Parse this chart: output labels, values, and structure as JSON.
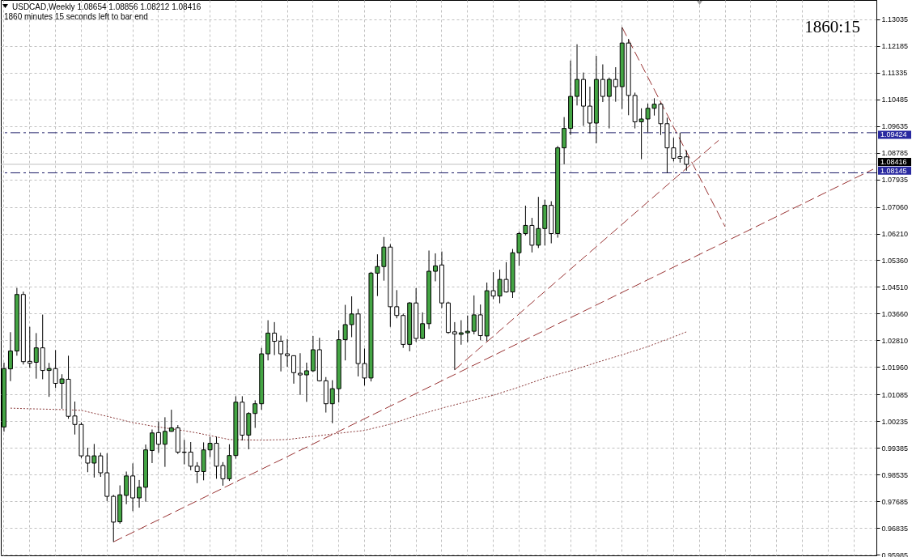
{
  "chart_data": {
    "type": "candlestick",
    "title": "USDCAD,Weekly  1.08654 1.08856 1.08212 1.08416",
    "subtitle": "1860 minutes 15 seconds left to bar end",
    "annotations": [
      "1860:15"
    ],
    "categories": [
      null,
      null,
      null,
      null,
      null,
      null,
      null,
      null,
      null,
      null,
      null,
      null,
      null,
      null,
      null,
      null,
      null,
      null,
      null,
      null,
      null,
      null,
      null,
      null,
      null,
      null,
      null,
      null,
      null,
      null,
      null,
      null,
      null,
      null,
      null,
      null,
      null,
      null,
      null,
      null,
      null,
      null,
      null,
      null,
      null,
      null,
      null,
      null,
      null,
      null,
      null,
      null,
      null,
      null,
      null,
      null,
      null,
      null,
      null,
      null,
      null,
      null,
      null,
      null,
      null,
      null,
      null,
      null,
      null,
      null,
      null,
      null,
      null,
      null,
      null,
      null,
      null,
      null,
      null,
      null,
      null,
      null,
      null,
      null,
      null,
      null,
      null,
      null,
      null,
      null,
      null,
      null,
      null,
      null,
      null,
      null,
      null,
      null,
      null,
      null,
      null,
      null,
      null,
      null,
      null,
      null,
      null,
      null,
      null,
      null,
      null,
      null,
      null,
      null,
      null,
      null,
      null,
      null,
      null,
      null,
      null,
      null,
      null,
      null,
      null,
      null,
      null,
      null,
      null,
      null,
      null,
      null,
      null,
      null,
      null,
      null
    ],
    "ohlc": [
      [
        1.0005,
        1.021,
        0.999,
        1.0191
      ],
      [
        1.019,
        1.0307,
        1.0151,
        1.0247
      ],
      [
        1.0247,
        1.0448,
        1.0232,
        1.0427
      ],
      [
        1.0427,
        1.0436,
        1.0204,
        1.0213
      ],
      [
        1.0214,
        1.0324,
        1.0193,
        1.0208
      ],
      [
        1.0211,
        1.0304,
        1.0159,
        1.0257
      ],
      [
        1.0257,
        1.0363,
        1.0157,
        1.0185
      ],
      [
        1.0185,
        1.0209,
        1.0101,
        1.0191
      ],
      [
        1.0191,
        1.025,
        1.0129,
        1.0144
      ],
      [
        1.0144,
        1.0173,
        1.0063,
        1.0158
      ],
      [
        1.0157,
        1.0232,
        1.0031,
        1.0039
      ],
      [
        1.004,
        1.0086,
        0.9981,
        1.0013
      ],
      [
        1.0013,
        1.002,
        0.9906,
        0.9913
      ],
      [
        0.9913,
        0.9939,
        0.9861,
        0.989
      ],
      [
        0.989,
        0.9951,
        0.9844,
        0.9913
      ],
      [
        0.9913,
        0.9923,
        0.9846,
        0.9859
      ],
      [
        0.9859,
        0.9921,
        0.9769,
        0.9784
      ],
      [
        0.9784,
        0.9789,
        0.9639,
        0.9702
      ],
      [
        0.9703,
        0.9819,
        0.9697,
        0.9789
      ],
      [
        0.9787,
        0.9863,
        0.9759,
        0.9849
      ],
      [
        0.9849,
        0.9889,
        0.9737,
        0.9779
      ],
      [
        0.9779,
        0.9836,
        0.9748,
        0.9813
      ],
      [
        0.9813,
        0.9949,
        0.9767,
        0.9932
      ],
      [
        0.993,
        0.9997,
        0.989,
        0.9986
      ],
      [
        0.9987,
        1.0023,
        0.9923,
        0.995
      ],
      [
        0.995,
        1.0036,
        0.9878,
        0.9991
      ],
      [
        0.9991,
        1.006,
        0.999,
        1.0002
      ],
      [
        1.0002,
        1.0011,
        0.9919,
        0.9925
      ],
      [
        0.9925,
        0.9964,
        0.9886,
        0.9924
      ],
      [
        0.9925,
        0.9957,
        0.9867,
        0.988
      ],
      [
        0.988,
        0.9893,
        0.9826,
        0.9863
      ],
      [
        0.9863,
        0.9956,
        0.9835,
        0.9932
      ],
      [
        0.9932,
        0.9974,
        0.9909,
        0.9953
      ],
      [
        0.9953,
        0.9974,
        0.984,
        0.988
      ],
      [
        0.9882,
        0.9893,
        0.9818,
        0.984
      ],
      [
        0.984,
        0.995,
        0.9833,
        0.9914
      ],
      [
        0.9914,
        1.0103,
        0.9904,
        1.0084
      ],
      [
        1.0084,
        1.0103,
        0.9962,
        0.9979
      ],
      [
        0.9979,
        1.0052,
        0.9934,
        1.0048
      ],
      [
        1.0048,
        1.009,
        1.0002,
        1.0079
      ],
      [
        1.0079,
        1.0257,
        1.006,
        1.0238
      ],
      [
        1.0238,
        1.0345,
        1.0217,
        1.0304
      ],
      [
        1.0304,
        1.0339,
        1.0234,
        1.0278
      ],
      [
        1.0278,
        1.0296,
        1.0182,
        1.0238
      ],
      [
        1.0238,
        1.0285,
        1.0197,
        1.0232
      ],
      [
        1.0232,
        1.0233,
        1.0143,
        1.0178
      ],
      [
        1.0176,
        1.024,
        1.0107,
        1.0171
      ],
      [
        1.0171,
        1.021,
        1.0085,
        1.0184
      ],
      [
        1.0184,
        1.0295,
        1.018,
        1.0251
      ],
      [
        1.0251,
        1.0289,
        1.015,
        1.0152
      ],
      [
        1.0152,
        1.0164,
        1.0051,
        1.0079
      ],
      [
        1.0079,
        1.0154,
        1.0017,
        1.0127
      ],
      [
        1.0127,
        1.0313,
        1.0083,
        1.0283
      ],
      [
        1.0283,
        1.0394,
        1.0217,
        1.0331
      ],
      [
        1.0331,
        1.0421,
        1.0291,
        1.0365
      ],
      [
        1.0365,
        1.0381,
        1.0166,
        1.0207
      ],
      [
        1.0207,
        1.0255,
        1.0137,
        1.0161
      ],
      [
        1.0161,
        1.0499,
        1.015,
        1.0495
      ],
      [
        1.0495,
        1.0555,
        1.0422,
        1.0516
      ],
      [
        1.0516,
        1.061,
        1.0471,
        1.0578
      ],
      [
        1.0578,
        1.0587,
        1.0324,
        1.0388
      ],
      [
        1.0388,
        1.0441,
        1.0351,
        1.036
      ],
      [
        1.036,
        1.0366,
        1.0257,
        1.0268
      ],
      [
        1.0268,
        1.0403,
        1.0246,
        1.04
      ],
      [
        1.04,
        1.0447,
        1.0276,
        1.0287
      ],
      [
        1.0287,
        1.037,
        1.0285,
        1.0334
      ],
      [
        1.0334,
        1.0567,
        1.0317,
        1.0501
      ],
      [
        1.0501,
        1.0558,
        1.0469,
        1.0518
      ],
      [
        1.0521,
        1.0564,
        1.0384,
        1.04
      ],
      [
        1.04,
        1.0404,
        1.0302,
        1.0306
      ],
      [
        1.0308,
        1.0339,
        1.0187,
        1.0301
      ],
      [
        1.03,
        1.0345,
        1.0267,
        1.0305
      ],
      [
        1.0305,
        1.036,
        1.0275,
        1.031
      ],
      [
        1.031,
        1.0424,
        1.03,
        1.0362
      ],
      [
        1.0362,
        1.0395,
        1.0281,
        1.0296
      ],
      [
        1.0295,
        1.0465,
        1.0278,
        1.0439
      ],
      [
        1.0439,
        1.0498,
        1.0412,
        1.0422
      ],
      [
        1.0422,
        1.0506,
        1.0399,
        1.0475
      ],
      [
        1.0475,
        1.053,
        1.0433,
        1.0435
      ],
      [
        1.0435,
        1.0572,
        1.0416,
        1.056
      ],
      [
        1.056,
        1.0627,
        1.0518,
        1.0621
      ],
      [
        1.0621,
        1.071,
        1.0615,
        1.0647
      ],
      [
        1.0647,
        1.0671,
        1.0561,
        1.0584
      ],
      [
        1.0584,
        1.0738,
        1.0575,
        1.0637
      ],
      [
        1.0637,
        1.0729,
        1.0583,
        1.0711
      ],
      [
        1.0711,
        1.0724,
        1.059,
        1.0621
      ],
      [
        1.0621,
        1.09,
        1.0608,
        1.0894
      ],
      [
        1.0894,
        1.0992,
        1.0842,
        1.0956
      ],
      [
        1.0956,
        1.1172,
        1.0935,
        1.1058
      ],
      [
        1.1058,
        1.1224,
        1.1029,
        1.1112
      ],
      [
        1.1112,
        1.1134,
        1.0964,
        1.1027
      ],
      [
        1.1027,
        1.1089,
        1.0941,
        1.0973
      ],
      [
        1.0973,
        1.1187,
        1.0909,
        1.1112
      ],
      [
        1.1112,
        1.116,
        1.104,
        1.1058
      ],
      [
        1.1058,
        1.1118,
        1.0956,
        1.1112
      ],
      [
        1.1112,
        1.1151,
        1.1041,
        1.1089
      ],
      [
        1.1089,
        1.1278,
        1.1018,
        1.1228
      ],
      [
        1.1228,
        1.1241,
        1.0998,
        1.1061
      ],
      [
        1.1061,
        1.107,
        1.0956,
        1.0977
      ],
      [
        1.0977,
        1.102,
        1.0858,
        1.0986
      ],
      [
        1.0986,
        1.1035,
        1.0944,
        1.102
      ],
      [
        1.102,
        1.1052,
        1.0997,
        1.1033
      ],
      [
        1.1033,
        1.1038,
        1.0935,
        1.0971
      ],
      [
        1.0971,
        1.099,
        1.08145,
        1.0894
      ],
      [
        1.0894,
        1.0926,
        1.0851,
        1.0861
      ],
      [
        1.0866,
        1.09424,
        1.0847,
        1.0861
      ],
      [
        1.08654,
        1.08856,
        1.08212,
        1.08416
      ],
      null,
      null,
      null,
      null,
      null,
      null,
      null,
      null,
      null,
      null,
      null,
      null,
      null,
      null,
      null,
      null,
      null,
      null,
      null,
      null,
      null,
      null,
      null,
      null,
      null,
      null,
      null,
      null,
      null
    ],
    "colors": [
      "#44a544",
      "#44a544",
      "#44a544",
      "#ffffff",
      "#ffffff",
      "#44a544",
      "#ffffff",
      "#44a544",
      "#ffffff",
      "#44a544",
      "#ffffff",
      "#ffffff",
      "#ffffff",
      "#ffffff",
      "#44a544",
      "#ffffff",
      "#ffffff",
      "#ffffff",
      "#44a544",
      "#44a544",
      "#ffffff",
      "#44a544",
      "#44a544",
      "#44a544",
      "#ffffff",
      "#44a544",
      "#44a544",
      "#ffffff",
      "#ffffff",
      "#ffffff",
      "#ffffff",
      "#44a544",
      "#44a544",
      "#ffffff",
      "#ffffff",
      "#44a544",
      "#44a544",
      "#ffffff",
      "#44a544",
      "#44a544",
      "#44a544",
      "#44a544",
      "#ffffff",
      "#ffffff",
      "#ffffff",
      "#ffffff",
      "#ffffff",
      "#44a544",
      "#44a544",
      "#ffffff",
      "#ffffff",
      "#44a544",
      "#44a544",
      "#44a544",
      "#44a544",
      "#ffffff",
      "#ffffff",
      "#44a544",
      "#44a544",
      "#44a544",
      "#ffffff",
      "#ffffff",
      "#ffffff",
      "#44a544",
      "#ffffff",
      "#44a544",
      "#44a544",
      "#44a544",
      "#ffffff",
      "#ffffff",
      "#ffffff",
      "#44a544",
      "#44a544",
      "#44a544",
      "#ffffff",
      "#44a544",
      "#ffffff",
      "#44a544",
      "#ffffff",
      "#44a544",
      "#44a544",
      "#44a544",
      "#ffffff",
      "#44a544",
      "#44a544",
      "#ffffff",
      "#44a544",
      "#44a544",
      "#44a544",
      "#44a544",
      "#ffffff",
      "#ffffff",
      "#44a544",
      "#ffffff",
      "#44a544",
      "#ffffff",
      "#44a544",
      "#ffffff",
      "#ffffff",
      "#44a544",
      "#44a544",
      "#44a544",
      "#ffffff",
      "#ffffff",
      "#ffffff",
      "#ffffff",
      "#ffffff",
      null,
      null,
      null,
      null,
      null,
      null,
      null,
      null,
      null,
      null,
      null,
      null,
      null,
      null,
      null,
      null,
      null,
      null,
      null,
      null,
      null,
      null,
      null,
      null,
      null,
      null,
      null,
      null,
      null
    ],
    "series": [
      {
        "type": "line",
        "color": "#993333",
        "line_style": "dashed",
        "values": [
          null,
          null,
          null,
          null,
          null,
          null,
          null,
          null,
          null,
          null,
          null,
          null,
          null,
          null,
          null,
          null,
          null,
          0.9639,
          null,
          null,
          null,
          null,
          null,
          null,
          null,
          null,
          null,
          null,
          null,
          null,
          null,
          null,
          null,
          null,
          null,
          null,
          null,
          null,
          null,
          null,
          null,
          null,
          null,
          null,
          null,
          null,
          null,
          null,
          null,
          null,
          null,
          null,
          null,
          null,
          null,
          null,
          null,
          null,
          null,
          null,
          null,
          null,
          null,
          null,
          null,
          null,
          null,
          null,
          null,
          null,
          null,
          null,
          null,
          null,
          null,
          null,
          null,
          null,
          null,
          null,
          null,
          null,
          null,
          null,
          null,
          null,
          null,
          null,
          null,
          null,
          null,
          null,
          null,
          null,
          null,
          null,
          null,
          null,
          null,
          null,
          null,
          null,
          null,
          null,
          null,
          null,
          null,
          null,
          null,
          null,
          null,
          null,
          null,
          null,
          null,
          null,
          null,
          null,
          null,
          null,
          null,
          null,
          null,
          null,
          null,
          null,
          null,
          null,
          null,
          null,
          null,
          null,
          null,
          null,
          null,
          1.0826
        ]
      },
      {
        "type": "line",
        "color": "#993333",
        "line_style": "dashed",
        "values": [
          null,
          null,
          null,
          null,
          null,
          null,
          null,
          null,
          null,
          null,
          null,
          null,
          null,
          null,
          null,
          null,
          null,
          null,
          null,
          null,
          null,
          null,
          null,
          null,
          null,
          null,
          null,
          null,
          null,
          null,
          null,
          null,
          null,
          null,
          null,
          null,
          null,
          null,
          null,
          null,
          null,
          null,
          null,
          null,
          null,
          null,
          null,
          null,
          null,
          null,
          null,
          null,
          null,
          null,
          null,
          null,
          null,
          null,
          null,
          null,
          null,
          null,
          null,
          null,
          null,
          null,
          null,
          null,
          null,
          null,
          1.0187,
          null,
          null,
          null,
          null,
          null,
          null,
          null,
          null,
          null,
          null,
          null,
          null,
          null,
          null,
          null,
          null,
          null,
          null,
          null,
          null,
          null,
          null,
          null,
          null,
          null,
          null,
          null,
          null,
          null,
          null,
          null,
          null,
          null,
          null,
          null,
          null,
          null,
          null,
          null,
          null,
          1.0918,
          null,
          null,
          null,
          null,
          null,
          null,
          null,
          null,
          null,
          null,
          null,
          null,
          null,
          null,
          null,
          null,
          null,
          null,
          null,
          null,
          null,
          null,
          null,
          null
        ]
      },
      {
        "type": "line",
        "color": "#993333",
        "line_style": "dashed",
        "values": [
          null,
          null,
          null,
          null,
          null,
          null,
          null,
          null,
          null,
          null,
          null,
          null,
          null,
          null,
          null,
          null,
          null,
          null,
          null,
          null,
          null,
          null,
          null,
          null,
          null,
          null,
          null,
          null,
          null,
          null,
          null,
          null,
          null,
          null,
          null,
          null,
          null,
          null,
          null,
          null,
          null,
          null,
          null,
          null,
          null,
          null,
          null,
          null,
          null,
          null,
          null,
          null,
          null,
          null,
          null,
          null,
          null,
          null,
          null,
          null,
          null,
          null,
          null,
          null,
          null,
          null,
          null,
          null,
          null,
          null,
          null,
          null,
          null,
          null,
          null,
          null,
          null,
          null,
          null,
          null,
          null,
          null,
          null,
          null,
          null,
          null,
          null,
          null,
          null,
          null,
          null,
          null,
          null,
          null,
          null,
          null,
          1.1278,
          null,
          null,
          null,
          null,
          null,
          null,
          null,
          null,
          null,
          null,
          null,
          null,
          null,
          null,
          null,
          1.0643,
          null,
          null,
          null,
          null,
          null,
          null,
          null,
          null,
          null,
          null,
          null,
          null,
          null,
          null,
          null,
          null,
          null,
          null,
          null,
          null,
          null,
          null,
          null
        ]
      },
      {
        "type": "line",
        "color": "#8b3a3a",
        "line_style": "dotted",
        "values": [
          null,
          1.0065,
          null,
          null,
          1.0063,
          null,
          null,
          null,
          1.0061,
          null,
          null,
          null,
          1.0058,
          null,
          null,
          null,
          1.0039,
          null,
          null,
          null,
          1.0019,
          null,
          null,
          1.0008,
          null,
          null,
          null,
          null,
          0.9993,
          null,
          0.9986,
          null,
          null,
          null,
          null,
          0.9965,
          null,
          null,
          null,
          null,
          0.9963,
          null,
          null,
          null,
          0.9965,
          null,
          null,
          null,
          0.9975,
          null,
          null,
          null,
          0.9985,
          null,
          null,
          null,
          0.9994,
          null,
          null,
          null,
          1.0014,
          null,
          null,
          null,
          1.0041,
          null,
          null,
          null,
          1.0065,
          null,
          null,
          null,
          1.0086,
          null,
          null,
          null,
          1.0106,
          null,
          null,
          null,
          1.0132,
          null,
          null,
          null,
          1.0161,
          null,
          null,
          null,
          1.0184,
          null,
          null,
          null,
          1.021,
          null,
          null,
          null,
          1.0235,
          null,
          null,
          null,
          1.0261,
          null,
          null,
          null,
          1.0292,
          null,
          1.0308,
          null,
          null,
          null,
          null,
          null,
          null,
          null,
          null,
          null,
          null,
          null,
          null,
          null,
          null,
          null,
          null,
          null,
          null,
          null,
          null,
          null,
          null,
          null,
          null,
          null,
          null,
          null,
          null,
          null
        ]
      }
    ],
    "ref_lines": [
      {
        "axis": "y",
        "value": 1.09424,
        "label": "1.09424",
        "color": "#1a1a66",
        "line_style": "dashed"
      },
      {
        "axis": "y",
        "value": 1.08416,
        "label": "1.08416",
        "color": "#c0c0c0",
        "line_style": "solid"
      },
      {
        "axis": "y",
        "value": 1.08145,
        "label": "1.08145",
        "color": "#1a1a66",
        "line_style": "dashed"
      }
    ],
    "ylim": [
      0.9596,
      1.1365
    ],
    "yticks": [
      0.95985,
      0.96835,
      0.97685,
      0.98535,
      0.99385,
      1.00235,
      1.01085,
      {
        "value": 1.0196,
        "label": "1.01960"
      },
      {
        "value": 1.0281,
        "label": "1.02810"
      },
      {
        "value": 1.0366,
        "label": "1.03660"
      },
      {
        "value": 1.0451,
        "label": "1.04510"
      },
      {
        "value": 1.0536,
        "label": "1.05360"
      },
      {
        "value": 1.0621,
        "label": "1.06210"
      },
      {
        "value": 1.0706,
        "label": "1.07060"
      },
      1.07935,
      1.08785,
      1.09635,
      1.10485,
      1.11335,
      1.12185,
      1.13035
    ],
    "grid": true,
    "tick_labels": "y"
  }
}
